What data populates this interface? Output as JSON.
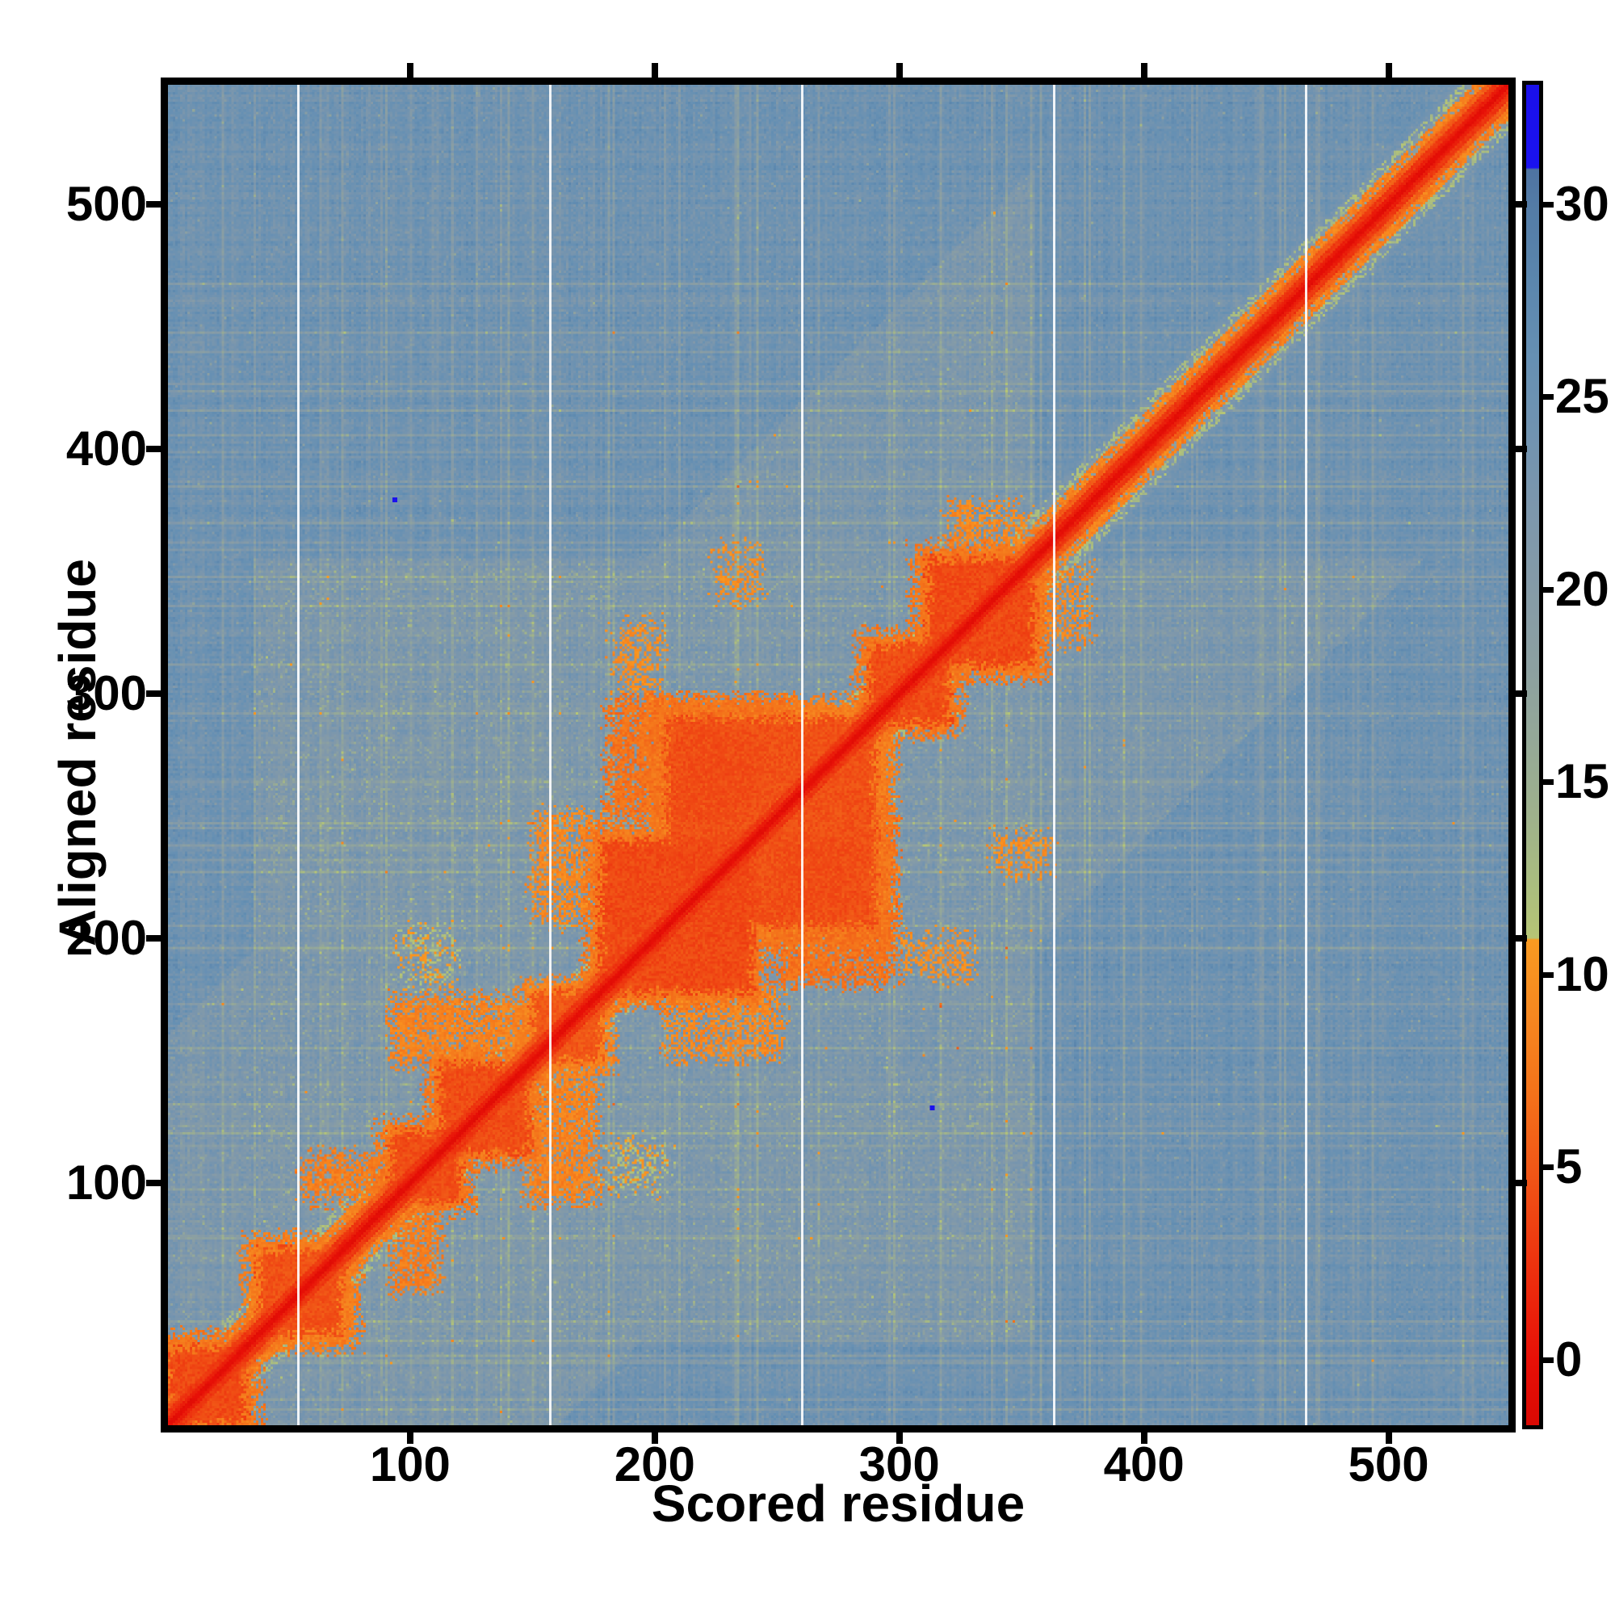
{
  "chart_data": {
    "type": "heatmap",
    "title": "",
    "xlabel": "Scored residue",
    "ylabel": "Aligned residue",
    "x_range": [
      1,
      549
    ],
    "y_range": [
      1,
      549
    ],
    "x_ticks": [
      100,
      200,
      300,
      400,
      500
    ],
    "y_ticks": [
      100,
      200,
      300,
      400,
      500
    ],
    "grid": false,
    "legend": "colorbar-right",
    "colorbar": {
      "ticks": [
        0,
        5,
        10,
        15,
        20,
        25,
        30
      ],
      "vmin": -1.7,
      "vmax": 33.1,
      "blue_cap_above": 30.9,
      "stops": [
        [
          -1.7,
          "#d90903"
        ],
        [
          0,
          "#e81007"
        ],
        [
          3,
          "#ee3a10"
        ],
        [
          5,
          "#f15817"
        ],
        [
          7,
          "#f4731a"
        ],
        [
          9,
          "#f68820"
        ],
        [
          10.9,
          "#f99a21"
        ],
        [
          10.95,
          "#b6c575"
        ],
        [
          12.5,
          "#a9bc80"
        ],
        [
          14,
          "#9fb28b"
        ],
        [
          16,
          "#95a997"
        ],
        [
          18,
          "#8ca0a1"
        ],
        [
          20,
          "#859ba7"
        ],
        [
          22,
          "#7d97ac"
        ],
        [
          24,
          "#7193b0"
        ],
        [
          26,
          "#6690b3"
        ],
        [
          28,
          "#5b86ad"
        ],
        [
          30,
          "#537ba6"
        ],
        [
          30.9,
          "#4e73a1"
        ],
        [
          30.95,
          "#1a12ef"
        ],
        [
          33.1,
          "#1a10ea"
        ]
      ]
    },
    "background_value": 24.5,
    "diagonal_value": 0,
    "central_band": [
      36,
      355
    ],
    "white_gridlines_x": [
      54,
      157,
      260,
      363,
      466
    ],
    "domains": [
      {
        "range": [
          1,
          32
        ],
        "core_value": 3.0,
        "halo_value": 7.5,
        "halo_pad": 6
      },
      {
        "range": [
          38,
          72
        ],
        "core_value": 3.5,
        "halo_value": 8.0,
        "halo_pad": 6
      },
      {
        "range": [
          92,
          120
        ],
        "core_value": 3.2,
        "halo_value": 7.5,
        "halo_pad": 5
      },
      {
        "range": [
          112,
          148
        ],
        "core_value": 3.2,
        "halo_value": 7.5,
        "halo_pad": 5
      },
      {
        "range": [
          150,
          178
        ],
        "core_value": 4.0,
        "halo_value": 8.5,
        "halo_pad": 5
      },
      {
        "range": [
          178,
          240
        ],
        "core_value": 3.0,
        "halo_value": 7.5,
        "halo_pad": 6
      },
      {
        "range": [
          205,
          290
        ],
        "core_value": 3.5,
        "halo_value": 8.0,
        "halo_pad": 8
      },
      {
        "range": [
          288,
          320
        ],
        "core_value": 3.2,
        "halo_value": 7.5,
        "halo_pad": 5
      },
      {
        "range": [
          312,
          355
        ],
        "core_value": 3.0,
        "halo_value": 7.5,
        "halo_pad": 6
      }
    ],
    "contacts": [
      {
        "x": [
          55,
          90
        ],
        "y": [
          92,
          112
        ],
        "value": 8.0,
        "speckle": 0.75
      },
      {
        "x": [
          92,
          148
        ],
        "y": [
          148,
          176
        ],
        "value": 8.5,
        "speckle": 0.8
      },
      {
        "x": [
          150,
          178
        ],
        "y": [
          205,
          252
        ],
        "value": 9.0,
        "speckle": 0.6
      },
      {
        "x": [
          181,
          257
        ],
        "y": [
          248,
          298
        ],
        "value": 7.0,
        "speckle": 0.85
      },
      {
        "x": [
          210,
          240
        ],
        "y": [
          250,
          282
        ],
        "value": 4.5,
        "speckle": 1.0
      },
      {
        "x": [
          225,
          243
        ],
        "y": [
          338,
          362
        ],
        "value": 9.5,
        "speckle": 0.5
      },
      {
        "x": [
          183,
          202
        ],
        "y": [
          300,
          330
        ],
        "value": 9.5,
        "speckle": 0.5
      },
      {
        "x": [
          96,
          118
        ],
        "y": [
          180,
          205
        ],
        "value": 11.0,
        "speckle": 0.4
      },
      {
        "x": [
          320,
          352
        ],
        "y": [
          352,
          378
        ],
        "value": 9.0,
        "speckle": 0.55
      }
    ],
    "outlier_points": [
      {
        "x": 93,
        "y": 379,
        "value": 32
      },
      {
        "x": 313,
        "y": 130,
        "value": 32
      }
    ],
    "noise_seed": 20240613
  }
}
